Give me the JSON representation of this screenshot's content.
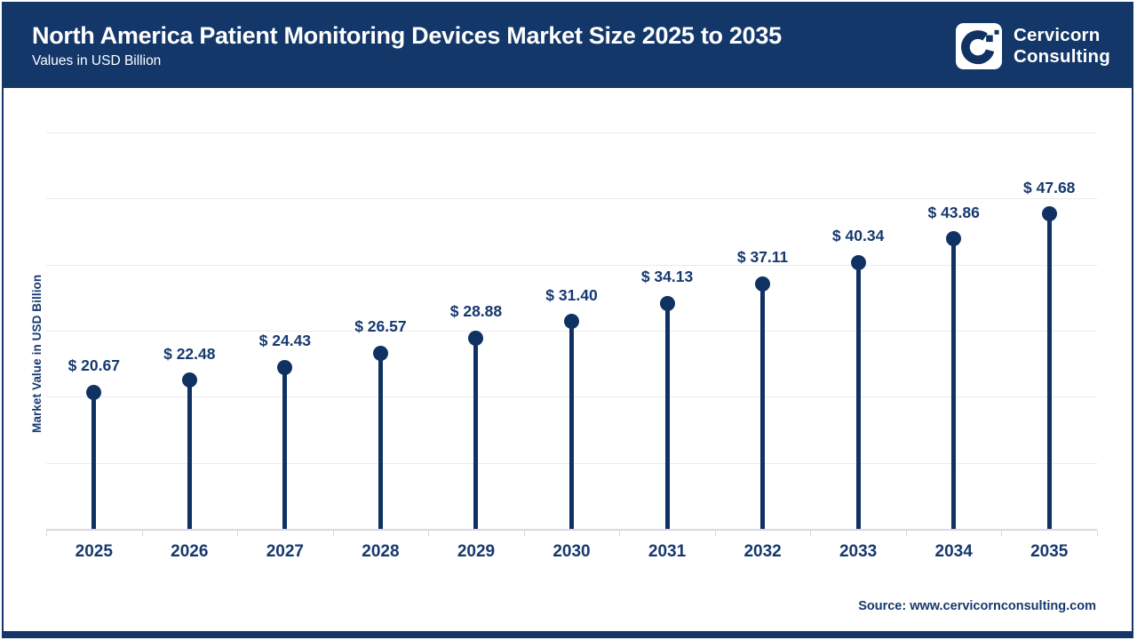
{
  "header": {
    "title": "North America Patient Monitoring Devices Market Size 2025 to 2035",
    "subtitle": "Values in USD Billion",
    "logo": {
      "line1": "Cervicorn",
      "line2": "Consulting"
    }
  },
  "chart_data": {
    "type": "bar",
    "style": "lollipop",
    "title": "North America Patient Monitoring Devices Market Size 2025 to 2035",
    "categories": [
      "2025",
      "2026",
      "2027",
      "2028",
      "2029",
      "2030",
      "2031",
      "2032",
      "2033",
      "2034",
      "2035"
    ],
    "values": [
      20.67,
      22.48,
      24.43,
      26.57,
      28.88,
      31.4,
      34.13,
      37.11,
      40.34,
      43.86,
      47.68
    ],
    "label_prefix": "$ ",
    "xlabel": "",
    "ylabel": "Market Value in USD Billion",
    "ylim": [
      0,
      60
    ],
    "grid_step": 10,
    "grid": true,
    "y_tick_labels_visible": false,
    "legend": "none"
  },
  "footer": {
    "source": "Source: www.cervicornconsulting.com"
  },
  "colors": {
    "navy_header": "#133769",
    "navy_dark": "#0f3263",
    "navy_text": "#16386e",
    "grid": "#ebebeb",
    "axis_line": "#d9d9d9",
    "background": "#ffffff"
  }
}
